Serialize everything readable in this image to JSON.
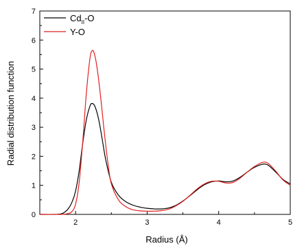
{
  "chart_data": {
    "type": "line",
    "title": "",
    "xlabel": "Radius (Å)",
    "ylabel": "Radial distribution function",
    "xlim": [
      1.5,
      5.0
    ],
    "ylim": [
      0,
      7
    ],
    "xticks": [
      2,
      3,
      4,
      5
    ],
    "yticks": [
      0,
      1,
      2,
      3,
      4,
      5,
      6,
      7
    ],
    "grid": false,
    "legend_position": "top-left",
    "series": [
      {
        "name_main": "Cd",
        "name_sub": "II",
        "name_suffix": "-O",
        "color": "#000000",
        "points": [
          [
            1.5,
            0
          ],
          [
            1.7,
            0
          ],
          [
            1.8,
            0.02
          ],
          [
            1.85,
            0.08
          ],
          [
            1.9,
            0.2
          ],
          [
            1.95,
            0.42
          ],
          [
            2.0,
            0.8
          ],
          [
            2.05,
            1.5
          ],
          [
            2.1,
            2.45
          ],
          [
            2.15,
            3.25
          ],
          [
            2.2,
            3.72
          ],
          [
            2.23,
            3.82
          ],
          [
            2.27,
            3.72
          ],
          [
            2.32,
            3.3
          ],
          [
            2.37,
            2.62
          ],
          [
            2.42,
            1.9
          ],
          [
            2.5,
            1.1
          ],
          [
            2.6,
            0.66
          ],
          [
            2.7,
            0.44
          ],
          [
            2.8,
            0.32
          ],
          [
            2.9,
            0.25
          ],
          [
            3.0,
            0.21
          ],
          [
            3.1,
            0.19
          ],
          [
            3.2,
            0.19
          ],
          [
            3.3,
            0.22
          ],
          [
            3.4,
            0.31
          ],
          [
            3.5,
            0.46
          ],
          [
            3.6,
            0.65
          ],
          [
            3.7,
            0.85
          ],
          [
            3.8,
            1.02
          ],
          [
            3.9,
            1.12
          ],
          [
            4.0,
            1.15
          ],
          [
            4.1,
            1.12
          ],
          [
            4.2,
            1.15
          ],
          [
            4.3,
            1.28
          ],
          [
            4.4,
            1.46
          ],
          [
            4.5,
            1.62
          ],
          [
            4.6,
            1.72
          ],
          [
            4.65,
            1.73
          ],
          [
            4.7,
            1.68
          ],
          [
            4.8,
            1.45
          ],
          [
            4.9,
            1.2
          ],
          [
            5.0,
            1.05
          ]
        ]
      },
      {
        "name_main": "Y-O",
        "name_sub": "",
        "name_suffix": "",
        "color": "#e02020",
        "points": [
          [
            1.5,
            0
          ],
          [
            1.8,
            0
          ],
          [
            1.9,
            0.03
          ],
          [
            1.95,
            0.1
          ],
          [
            2.0,
            0.35
          ],
          [
            2.05,
            1.1
          ],
          [
            2.1,
            2.5
          ],
          [
            2.15,
            4.15
          ],
          [
            2.2,
            5.35
          ],
          [
            2.23,
            5.63
          ],
          [
            2.26,
            5.55
          ],
          [
            2.3,
            5.05
          ],
          [
            2.35,
            4.05
          ],
          [
            2.4,
            2.85
          ],
          [
            2.45,
            1.8
          ],
          [
            2.5,
            1.05
          ],
          [
            2.6,
            0.5
          ],
          [
            2.7,
            0.27
          ],
          [
            2.8,
            0.16
          ],
          [
            2.9,
            0.12
          ],
          [
            3.0,
            0.11
          ],
          [
            3.1,
            0.11
          ],
          [
            3.2,
            0.13
          ],
          [
            3.3,
            0.18
          ],
          [
            3.4,
            0.29
          ],
          [
            3.5,
            0.45
          ],
          [
            3.6,
            0.66
          ],
          [
            3.7,
            0.88
          ],
          [
            3.8,
            1.05
          ],
          [
            3.9,
            1.14
          ],
          [
            4.0,
            1.14
          ],
          [
            4.1,
            1.08
          ],
          [
            4.2,
            1.1
          ],
          [
            4.3,
            1.25
          ],
          [
            4.4,
            1.46
          ],
          [
            4.5,
            1.65
          ],
          [
            4.6,
            1.78
          ],
          [
            4.65,
            1.8
          ],
          [
            4.7,
            1.74
          ],
          [
            4.8,
            1.48
          ],
          [
            4.9,
            1.18
          ],
          [
            5.0,
            1.0
          ]
        ]
      }
    ]
  }
}
